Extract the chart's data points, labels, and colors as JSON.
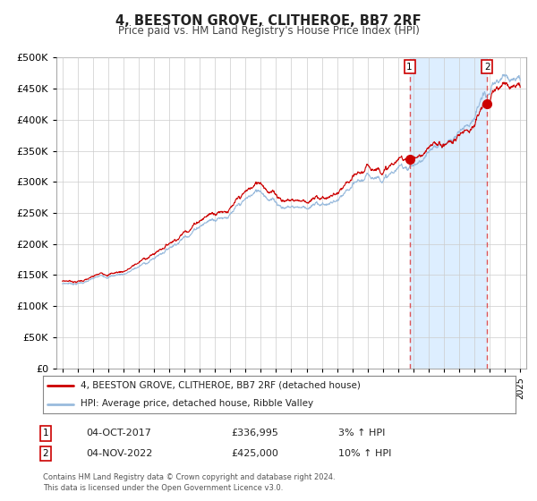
{
  "title": "4, BEESTON GROVE, CLITHEROE, BB7 2RF",
  "subtitle": "Price paid vs. HM Land Registry's House Price Index (HPI)",
  "legend_line1": "4, BEESTON GROVE, CLITHEROE, BB7 2RF (detached house)",
  "legend_line2": "HPI: Average price, detached house, Ribble Valley",
  "transaction1_date": "04-OCT-2017",
  "transaction1_price": "£336,995",
  "transaction1_hpi": "3% ↑ HPI",
  "transaction2_date": "04-NOV-2022",
  "transaction2_price": "£425,000",
  "transaction2_hpi": "10% ↑ HPI",
  "footnote": "Contains HM Land Registry data © Crown copyright and database right 2024.\nThis data is licensed under the Open Government Licence v3.0.",
  "red_color": "#cc0000",
  "blue_color": "#99bbdd",
  "shade_color": "#ddeeff",
  "vline_color": "#dd4444",
  "marker_color": "#cc0000",
  "grid_color": "#cccccc",
  "bg_color": "#ffffff",
  "box_color": "#cc0000",
  "ylim": [
    0,
    500000
  ],
  "yticks": [
    0,
    50000,
    100000,
    150000,
    200000,
    250000,
    300000,
    350000,
    400000,
    450000,
    500000
  ],
  "xstart": 1995,
  "xend": 2025,
  "transaction1_year": 2017.75,
  "transaction2_year": 2022.83,
  "sale1_price": 336995,
  "sale2_price": 425000
}
